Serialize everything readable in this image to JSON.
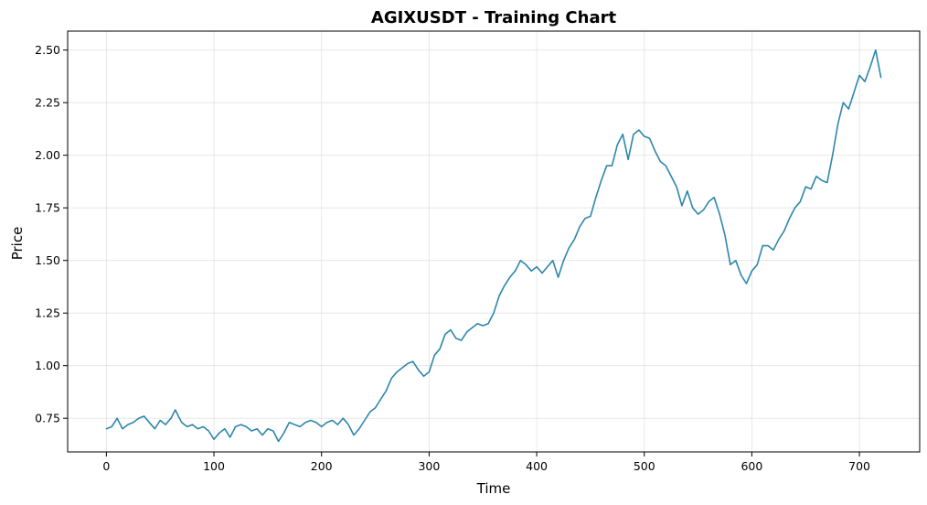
{
  "chart_data": {
    "type": "line",
    "title": "AGIXUSDT - Training Chart",
    "xlabel": "Time",
    "ylabel": "Price",
    "xlim": [
      -36,
      756
    ],
    "ylim": [
      0.59,
      2.59
    ],
    "xticks": [
      0,
      100,
      200,
      300,
      400,
      500,
      600,
      700
    ],
    "yticks": [
      0.75,
      1.0,
      1.25,
      1.5,
      1.75,
      2.0,
      2.25,
      2.5
    ],
    "ytick_labels": [
      "0.75",
      "1.00",
      "1.25",
      "1.50",
      "1.75",
      "2.00",
      "2.25",
      "2.50"
    ],
    "grid": true,
    "line_color": "#2e86ab",
    "series": [
      {
        "x": [
          0,
          5,
          10,
          15,
          20,
          25,
          30,
          35,
          40,
          45,
          50,
          55,
          60,
          64,
          70,
          75,
          80,
          85,
          90,
          95,
          100,
          105,
          110,
          115,
          120,
          125,
          130,
          135,
          140,
          145,
          150,
          155,
          160,
          165,
          170,
          175,
          180,
          185,
          190,
          195,
          200,
          205,
          210,
          215,
          220,
          225,
          230,
          235,
          240,
          245,
          250,
          255,
          260,
          265,
          270,
          275,
          280,
          285,
          290,
          295,
          300,
          305,
          310,
          315,
          320,
          325,
          330,
          335,
          340,
          345,
          350,
          355,
          360,
          365,
          370,
          375,
          380,
          385,
          390,
          395,
          400,
          405,
          410,
          415,
          420,
          425,
          430,
          435,
          440,
          445,
          450,
          455,
          460,
          465,
          470,
          475,
          480,
          485,
          490,
          495,
          500,
          505,
          510,
          515,
          520,
          525,
          530,
          535,
          540,
          545,
          550,
          555,
          560,
          565,
          570,
          575,
          580,
          585,
          590,
          595,
          600,
          605,
          610,
          615,
          620,
          625,
          630,
          635,
          640,
          645,
          650,
          655,
          660,
          665,
          670,
          675,
          680,
          685,
          690,
          695,
          700,
          705,
          710,
          715,
          720
        ],
        "y": [
          0.7,
          0.71,
          0.75,
          0.7,
          0.72,
          0.73,
          0.75,
          0.76,
          0.73,
          0.7,
          0.74,
          0.72,
          0.75,
          0.79,
          0.73,
          0.71,
          0.72,
          0.7,
          0.71,
          0.69,
          0.65,
          0.68,
          0.7,
          0.66,
          0.71,
          0.72,
          0.71,
          0.69,
          0.7,
          0.67,
          0.7,
          0.69,
          0.64,
          0.68,
          0.73,
          0.72,
          0.71,
          0.73,
          0.74,
          0.73,
          0.71,
          0.73,
          0.74,
          0.72,
          0.75,
          0.72,
          0.67,
          0.7,
          0.74,
          0.78,
          0.8,
          0.84,
          0.88,
          0.94,
          0.97,
          0.99,
          1.01,
          1.02,
          0.98,
          0.95,
          0.97,
          1.05,
          1.08,
          1.15,
          1.17,
          1.13,
          1.12,
          1.16,
          1.18,
          1.2,
          1.19,
          1.2,
          1.25,
          1.33,
          1.38,
          1.42,
          1.45,
          1.5,
          1.48,
          1.45,
          1.47,
          1.44,
          1.47,
          1.5,
          1.42,
          1.5,
          1.56,
          1.6,
          1.66,
          1.7,
          1.71,
          1.8,
          1.88,
          1.95,
          1.95,
          2.05,
          2.1,
          1.98,
          2.1,
          2.12,
          2.09,
          2.08,
          2.02,
          1.97,
          1.95,
          1.9,
          1.85,
          1.76,
          1.83,
          1.75,
          1.72,
          1.74,
          1.78,
          1.8,
          1.72,
          1.62,
          1.48,
          1.5,
          1.43,
          1.39,
          1.45,
          1.48,
          1.57,
          1.57,
          1.55,
          1.6,
          1.64,
          1.7,
          1.75,
          1.78,
          1.85,
          1.84,
          1.9,
          1.88,
          1.87,
          2.0,
          2.15,
          2.25,
          2.22,
          2.3,
          2.38,
          2.35,
          2.42,
          2.5,
          2.37
        ]
      }
    ]
  }
}
